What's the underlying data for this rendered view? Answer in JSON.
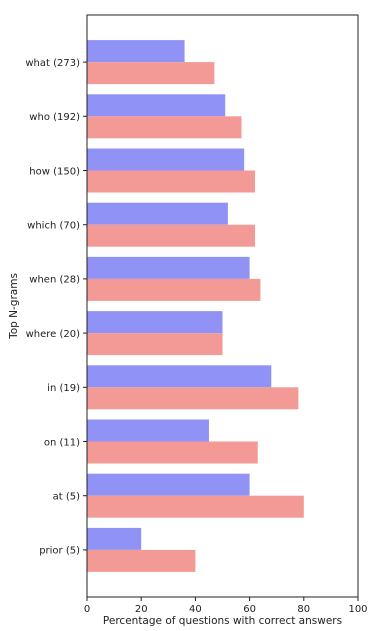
{
  "chart_data": {
    "type": "bar",
    "orientation": "horizontal",
    "title": "",
    "xlabel": "Percentage of questions with correct answers",
    "ylabel": "Top N-grams",
    "xlim": [
      0,
      100
    ],
    "xticks": [
      0,
      20,
      40,
      60,
      80,
      100
    ],
    "grid": false,
    "legend": null,
    "categories": [
      "what (273)",
      "who (192)",
      "how (150)",
      "which (70)",
      "when (28)",
      "where (20)",
      "in (19)",
      "on (11)",
      "at (5)",
      "prior (5)"
    ],
    "series": [
      {
        "color": "#9093f5",
        "values": [
          36,
          51,
          58,
          52,
          60,
          50,
          68,
          45,
          60,
          20
        ]
      },
      {
        "color": "#f39a97",
        "values": [
          47,
          57,
          62,
          62,
          64,
          50,
          78,
          63,
          80,
          40
        ]
      }
    ]
  }
}
